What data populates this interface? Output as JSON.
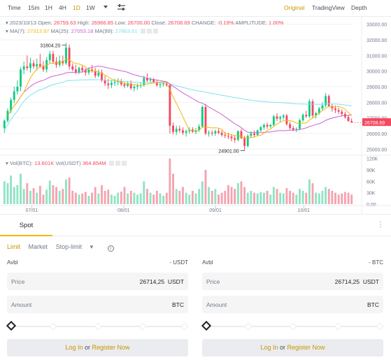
{
  "toolbar": {
    "intervals": [
      "Time",
      "15m",
      "1H",
      "4H",
      "1D",
      "1W"
    ],
    "active_interval": "1D",
    "views": [
      "Original",
      "TradingView",
      "Depth"
    ],
    "active_view": "Original"
  },
  "ohlc": {
    "date": "2023/10/13",
    "open_label": "Open:",
    "open": "26759.63",
    "high_label": "High:",
    "high": "26966.85",
    "low_label": "Low:",
    "low": "26700.00",
    "close_label": "Close:",
    "close": "26708.69",
    "change_label": "CHANGE:",
    "change": "-0.19%",
    "amplitude_label": "AMPLITUDE:",
    "amplitude": "1.00%"
  },
  "ma": {
    "title": "MA(7):",
    "ma7": "27313.97",
    "ma25_label": "MA(25):",
    "ma25": "27053.18",
    "ma99_label": "MA(99):",
    "ma99": "27863.61"
  },
  "vol": {
    "btc_label": "Vol(BTC):",
    "btc": "13.601K",
    "usdt_label": "Vol(USDT)",
    "usdt": "364.854M"
  },
  "price_axis": [
    "33000.00",
    "32000.00",
    "31000.00",
    "30000.00",
    "29000.00",
    "28000.00",
    "27000.00",
    "26000.00",
    "25000.00"
  ],
  "volume_axis": [
    "120K",
    "90K",
    "60K",
    "30K",
    "0.00"
  ],
  "date_axis": [
    "07/01",
    "08/01",
    "09/01",
    "10/01"
  ],
  "annotations": {
    "high": "31804.20",
    "low": "24901.00"
  },
  "current_price": "26708.69",
  "colors": {
    "up": "#0ecb81",
    "down": "#f6465d",
    "ma7": "#f0b90b",
    "ma25": "#d061d4",
    "ma99": "#7ee2f0",
    "accent": "#c99400"
  },
  "panel": {
    "tab": "Spot",
    "order_types": [
      "Limit",
      "Market",
      "Stop-limit"
    ],
    "active_order_type": "Limit",
    "buy": {
      "avbl_label": "Avbl",
      "avbl_value": "- USDT",
      "price_label": "Price",
      "price_value": "26714,25",
      "price_unit": "USDT",
      "amount_label": "Amount",
      "amount_unit": "BTC"
    },
    "sell": {
      "avbl_label": "Avbl",
      "avbl_value": "- BTC",
      "price_label": "Price",
      "price_value": "26714,25",
      "price_unit": "USDT",
      "amount_label": "Amount",
      "amount_unit": "BTC"
    },
    "login_text": "Log In",
    "or_text": "or",
    "register_text": "Register Now"
  },
  "chart_data": {
    "type": "candlestick",
    "title": "",
    "ylim": [
      24700,
      33300
    ],
    "volume_ylim": [
      0,
      125000
    ],
    "candles_ohlc": [
      [
        26350,
        26900,
        26050,
        26820
      ],
      [
        26820,
        27600,
        26700,
        27450
      ],
      [
        27450,
        28300,
        27300,
        28150
      ],
      [
        28150,
        29000,
        27950,
        28700
      ],
      [
        28700,
        29400,
        28500,
        29000
      ],
      [
        29000,
        30250,
        28700,
        30100
      ],
      [
        30100,
        30600,
        29800,
        30300
      ],
      [
        30300,
        31000,
        30050,
        30200
      ],
      [
        30200,
        30850,
        29900,
        30500
      ],
      [
        30500,
        30700,
        30150,
        30300
      ],
      [
        30300,
        30800,
        30050,
        30450
      ],
      [
        30450,
        31100,
        30200,
        30300
      ],
      [
        30300,
        30650,
        29950,
        30100
      ],
      [
        30100,
        30900,
        29900,
        30700
      ],
      [
        30700,
        31300,
        30500,
        31100
      ],
      [
        31100,
        31300,
        30450,
        30600
      ],
      [
        30600,
        30900,
        30200,
        30400
      ],
      [
        30400,
        31000,
        30250,
        30650
      ],
      [
        30650,
        31000,
        30350,
        30500
      ],
      [
        30500,
        31804,
        30400,
        31500
      ],
      [
        31500,
        31700,
        30100,
        30300
      ],
      [
        30300,
        30500,
        30000,
        30100
      ],
      [
        30100,
        30400,
        29800,
        29950
      ],
      [
        29950,
        30300,
        29800,
        30200
      ],
      [
        30200,
        30350,
        29900,
        30050
      ],
      [
        30050,
        30200,
        29700,
        29900
      ],
      [
        29900,
        30250,
        29750,
        30100
      ],
      [
        30100,
        30400,
        29900,
        30000
      ],
      [
        30000,
        30200,
        29550,
        29700
      ],
      [
        29700,
        30100,
        29600,
        29900
      ],
      [
        29900,
        30100,
        29300,
        29400
      ],
      [
        29400,
        29700,
        29050,
        29200
      ],
      [
        29200,
        29500,
        28850,
        29100
      ],
      [
        29100,
        29450,
        28900,
        29250
      ],
      [
        29250,
        29500,
        29050,
        29300
      ],
      [
        29300,
        29550,
        29100,
        29350
      ],
      [
        29350,
        29500,
        29050,
        29150
      ],
      [
        29150,
        29300,
        28900,
        29050
      ],
      [
        29050,
        29350,
        28950,
        29200
      ],
      [
        29200,
        29400,
        28800,
        28900
      ],
      [
        28900,
        29100,
        28700,
        29000
      ],
      [
        29000,
        29200,
        28800,
        29050
      ],
      [
        29050,
        29250,
        28900,
        29100
      ],
      [
        29100,
        29700,
        29000,
        29550
      ],
      [
        29550,
        29850,
        29300,
        29400
      ],
      [
        29400,
        29600,
        29250,
        29450
      ],
      [
        29450,
        29550,
        29200,
        29300
      ],
      [
        29300,
        29450,
        29000,
        29100
      ],
      [
        29100,
        29300,
        28900,
        29150
      ],
      [
        29150,
        29350,
        29000,
        29200
      ],
      [
        29200,
        29300,
        29000,
        29100
      ],
      [
        29100,
        29150,
        26000,
        26500
      ],
      [
        26500,
        26700,
        25950,
        26100
      ],
      [
        26100,
        26500,
        25900,
        26300
      ],
      [
        26300,
        26500,
        26050,
        26200
      ],
      [
        26200,
        26400,
        25900,
        26050
      ],
      [
        26050,
        26250,
        25800,
        26150
      ],
      [
        26150,
        26400,
        26000,
        26250
      ],
      [
        26250,
        26400,
        26050,
        26100
      ],
      [
        26100,
        26350,
        25950,
        26200
      ],
      [
        26200,
        26600,
        26100,
        26450
      ],
      [
        26450,
        27800,
        26350,
        27700
      ],
      [
        27700,
        27900,
        25900,
        26000
      ],
      [
        26000,
        26200,
        25800,
        26050
      ],
      [
        26050,
        26200,
        25850,
        26000
      ],
      [
        26000,
        26250,
        25850,
        26150
      ],
      [
        26150,
        26300,
        25950,
        26050
      ],
      [
        26050,
        26200,
        25800,
        25900
      ],
      [
        25900,
        26100,
        25700,
        25850
      ],
      [
        25850,
        26050,
        25650,
        25800
      ],
      [
        25800,
        25950,
        25500,
        25700
      ],
      [
        25700,
        25900,
        25400,
        25600
      ],
      [
        25600,
        26200,
        25500,
        26150
      ],
      [
        26150,
        26300,
        25650,
        25700
      ],
      [
        25700,
        25850,
        24901,
        25200
      ],
      [
        25200,
        25950,
        25100,
        25850
      ],
      [
        25850,
        26150,
        25750,
        26000
      ],
      [
        26000,
        26200,
        25800,
        25900
      ],
      [
        25900,
        26250,
        25850,
        26200
      ],
      [
        26200,
        26500,
        26100,
        26400
      ],
      [
        26400,
        26650,
        26250,
        26550
      ],
      [
        26550,
        26700,
        26300,
        26450
      ],
      [
        26450,
        26600,
        26350,
        26550
      ],
      [
        26550,
        27200,
        26450,
        27100
      ],
      [
        27100,
        27300,
        26800,
        26950
      ],
      [
        26950,
        27150,
        26750,
        27050
      ],
      [
        27050,
        27250,
        26900,
        27150
      ],
      [
        27150,
        27250,
        26500,
        26600
      ],
      [
        26600,
        26750,
        26250,
        26350
      ],
      [
        26350,
        26500,
        26150,
        26250
      ],
      [
        26250,
        26400,
        26100,
        26300
      ],
      [
        26300,
        26950,
        26200,
        26850
      ],
      [
        26850,
        27300,
        26750,
        27200
      ],
      [
        27200,
        27450,
        27000,
        27100
      ],
      [
        27100,
        28200,
        27000,
        28050
      ],
      [
        28050,
        28200,
        27000,
        27150
      ],
      [
        27150,
        27400,
        26950,
        27300
      ],
      [
        27300,
        27700,
        27200,
        27600
      ],
      [
        27600,
        28000,
        27450,
        27800
      ],
      [
        27800,
        28600,
        27700,
        28400
      ],
      [
        28400,
        28500,
        27700,
        27750
      ],
      [
        27750,
        27900,
        27400,
        27600
      ],
      [
        27600,
        27800,
        27300,
        27500
      ],
      [
        27500,
        27650,
        27250,
        27400
      ],
      [
        27400,
        27550,
        27100,
        27250
      ],
      [
        27250,
        27400,
        26950,
        27050
      ],
      [
        27050,
        27200,
        26750,
        26800
      ],
      [
        26800,
        26966,
        26700,
        26708
      ]
    ],
    "volumes": [
      60000,
      55000,
      75000,
      45000,
      50000,
      80000,
      40000,
      55000,
      35000,
      42000,
      30000,
      48000,
      25000,
      38000,
      62000,
      50000,
      45000,
      35000,
      40000,
      65000,
      70000,
      35000,
      30000,
      25000,
      28000,
      32000,
      22000,
      30000,
      45000,
      28000,
      50000,
      35000,
      38000,
      25000,
      22000,
      30000,
      33000,
      45000,
      28000,
      35000,
      30000,
      25000,
      28000,
      60000,
      40000,
      30000,
      25000,
      35000,
      28000,
      22000,
      30000,
      120000,
      80000,
      40000,
      35000,
      45000,
      30000,
      25000,
      35000,
      28000,
      40000,
      60000,
      90000,
      45000,
      35000,
      40000,
      25000,
      30000,
      35000,
      50000,
      45000,
      40000,
      55000,
      60000,
      45000,
      30000,
      35000,
      30000,
      28000,
      32000,
      30000,
      35000,
      25000,
      45000,
      40000,
      30000,
      28000,
      42000,
      35000,
      30000,
      25000,
      40000,
      35000,
      30000,
      65000,
      55000,
      30000,
      28000,
      35000,
      45000,
      40000,
      35000,
      30000,
      25000,
      28000,
      32000,
      30000,
      25000
    ]
  }
}
